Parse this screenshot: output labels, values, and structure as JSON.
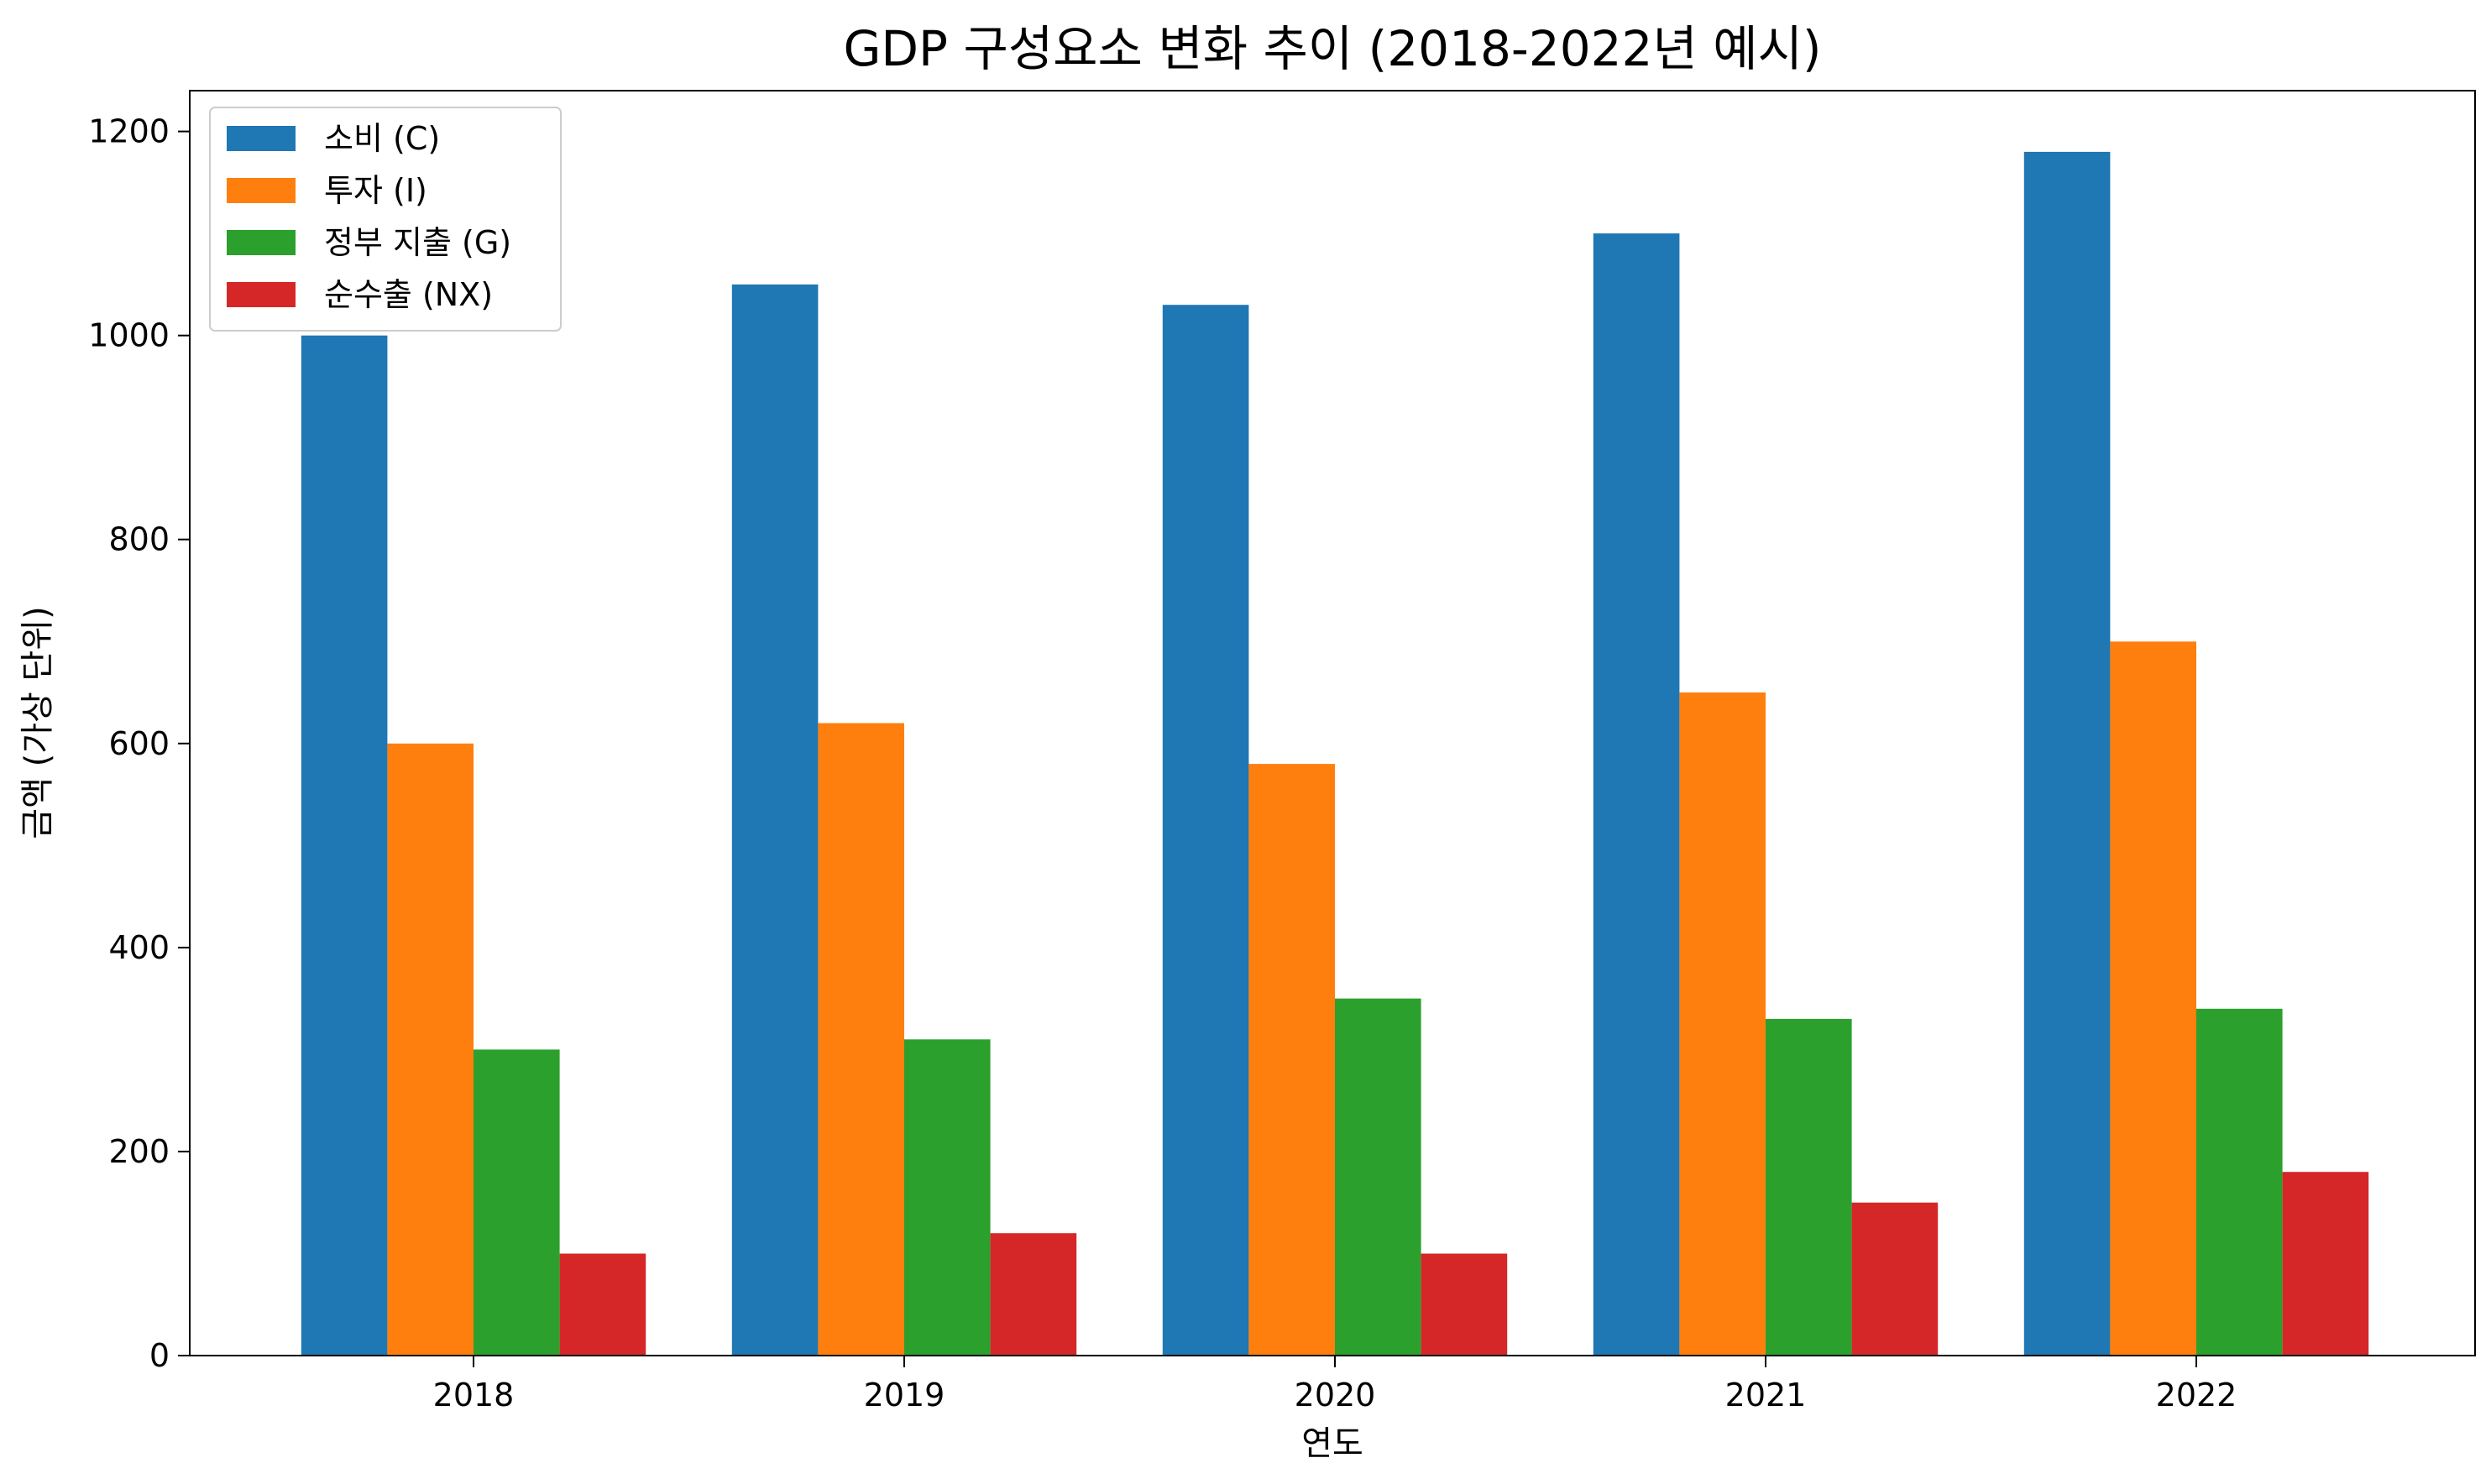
{
  "chart_data": {
    "type": "bar",
    "title": "GDP 구성요소 변화 추이 (2018-2022년 예시)",
    "xlabel": "연도",
    "ylabel": "금액 (가상 단위)",
    "categories": [
      "2018",
      "2019",
      "2020",
      "2021",
      "2022"
    ],
    "series": [
      {
        "name": "소비 (C)",
        "color": "#1f77b4",
        "values": [
          1000,
          1050,
          1030,
          1100,
          1180
        ]
      },
      {
        "name": "투자 (I)",
        "color": "#ff7f0e",
        "values": [
          600,
          620,
          580,
          650,
          700
        ]
      },
      {
        "name": "정부 지출 (G)",
        "color": "#2ca02c",
        "values": [
          300,
          310,
          350,
          330,
          340
        ]
      },
      {
        "name": "순수출 (NX)",
        "color": "#d62728",
        "values": [
          100,
          120,
          100,
          150,
          180
        ]
      }
    ],
    "ylim": [
      0,
      1240
    ],
    "yticks": [
      0,
      200,
      400,
      600,
      800,
      1000,
      1200
    ],
    "grid": false,
    "legend_position": "top-left"
  }
}
